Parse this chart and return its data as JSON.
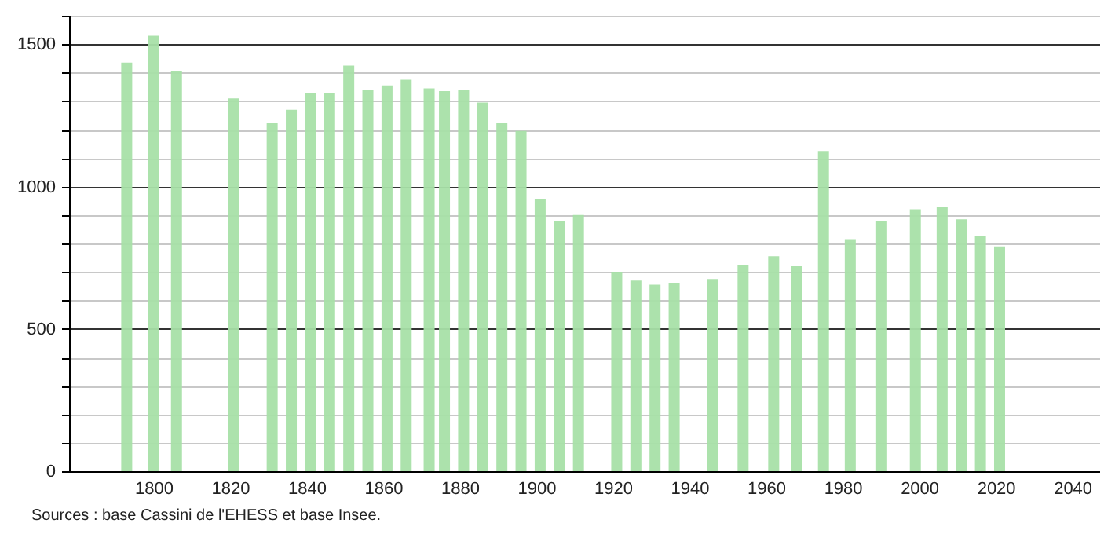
{
  "chart_data": {
    "type": "bar",
    "x": [
      1793,
      1800,
      1806,
      1821,
      1831,
      1836,
      1841,
      1846,
      1851,
      1856,
      1861,
      1866,
      1872,
      1876,
      1881,
      1886,
      1891,
      1896,
      1901,
      1906,
      1911,
      1921,
      1926,
      1931,
      1936,
      1946,
      1954,
      1962,
      1968,
      1975,
      1982,
      1990,
      1999,
      2006,
      2011,
      2016,
      2021
    ],
    "values": [
      1435,
      1530,
      1405,
      1310,
      1225,
      1270,
      1330,
      1330,
      1425,
      1340,
      1355,
      1375,
      1345,
      1335,
      1340,
      1295,
      1225,
      1195,
      955,
      880,
      900,
      700,
      670,
      655,
      660,
      675,
      725,
      755,
      720,
      1125,
      815,
      880,
      920,
      930,
      885,
      825,
      790
    ],
    "color": "#a8e0a8",
    "xlim": [
      1780,
      2045
    ],
    "xticks": [
      1800,
      1820,
      1840,
      1860,
      1880,
      1900,
      1920,
      1940,
      1960,
      1980,
      2000,
      2020,
      2040
    ],
    "ylim": [
      0,
      1600
    ],
    "yticks": [
      0,
      {
        "value": 100,
        "label": null
      },
      {
        "value": 200,
        "label": null
      },
      {
        "value": 300,
        "label": null
      },
      {
        "value": 400,
        "label": null
      },
      500,
      {
        "value": 600,
        "label": null
      },
      {
        "value": 700,
        "label": null
      },
      {
        "value": 800,
        "label": null
      },
      {
        "value": 900,
        "label": null
      },
      1000,
      {
        "value": 1100,
        "label": null
      },
      {
        "value": 1200,
        "label": null
      },
      {
        "value": 1300,
        "label": null
      },
      {
        "value": 1400,
        "label": null
      },
      1500,
      {
        "value": 1600,
        "label": null
      }
    ],
    "grid": "y",
    "annotations": [
      "Sources : base Cassini de l'EHESS et base Insee."
    ]
  }
}
